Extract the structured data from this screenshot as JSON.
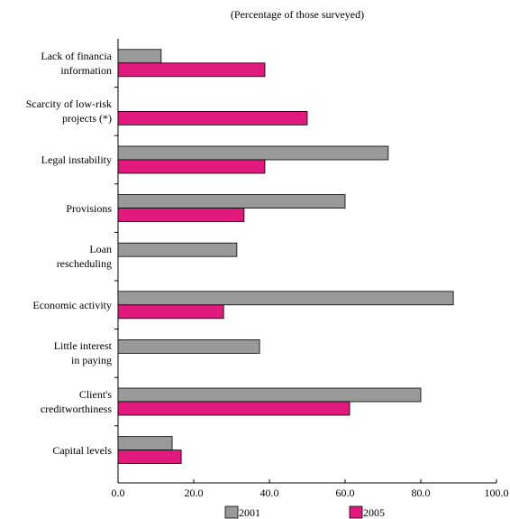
{
  "chart_data": {
    "type": "hbar",
    "subtitle": "(Percentage of those surveyed)",
    "categories": [
      "Lack of financia\ninformation",
      "Scarcity of low-risk\nprojects (*)",
      "Legal instability",
      "Provisions",
      "Loan\nrescheduling",
      "Economic activity",
      "Little interest\nin paying",
      "Client's\ncreditworthiness",
      "Capital levels"
    ],
    "series": [
      {
        "name": "2001",
        "color": "#999999",
        "values": [
          11.4,
          null,
          71.4,
          60,
          31.4,
          88.6,
          37.4,
          80,
          14.3
        ]
      },
      {
        "name": "2005",
        "color": "#e2197d",
        "values": [
          38.8,
          50,
          38.8,
          33.3,
          null,
          27.9,
          null,
          61.2,
          16.7
        ]
      }
    ],
    "xlim": [
      0,
      100
    ],
    "xticks": [
      {
        "value": 0,
        "label": "0.0"
      },
      {
        "value": 20,
        "label": "20.0"
      },
      {
        "value": 40,
        "label": "40.0"
      },
      {
        "value": 60,
        "label": "60.0"
      },
      {
        "value": 80,
        "label": "80.0"
      },
      {
        "value": 100,
        "label": "100.0"
      }
    ],
    "legend": "bottom"
  }
}
